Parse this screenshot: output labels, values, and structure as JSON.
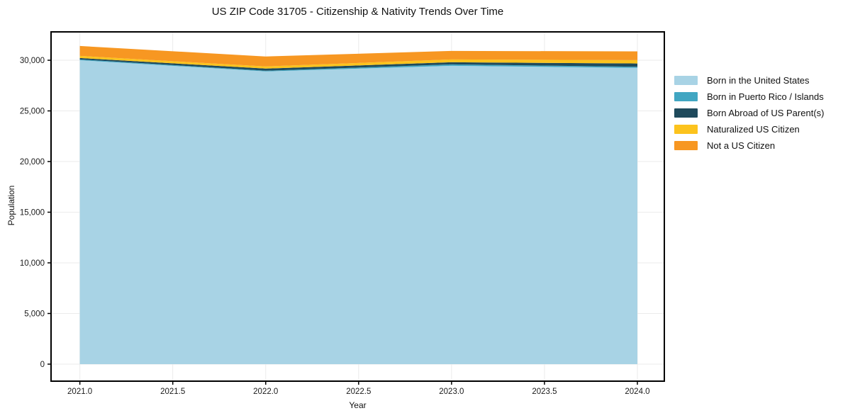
{
  "chart_data": {
    "type": "area",
    "stacked": true,
    "title": "US ZIP Code 31705 - Citizenship & Nativity Trends Over Time",
    "xlabel": "Year",
    "ylabel": "Population",
    "x": [
      2021,
      2022,
      2023,
      2024
    ],
    "series": [
      {
        "name": "Born in the United States",
        "color": "#a8d3e5",
        "values": [
          30000,
          28900,
          29450,
          29250
        ]
      },
      {
        "name": "Born in Puerto Rico / Islands",
        "color": "#41a6c2",
        "values": [
          80,
          70,
          140,
          100
        ]
      },
      {
        "name": "Born Abroad of US Parent(s)",
        "color": "#1f4a5c",
        "values": [
          140,
          210,
          210,
          330
        ]
      },
      {
        "name": "Naturalized US Citizen",
        "color": "#fcc31d",
        "values": [
          210,
          210,
          280,
          330
        ]
      },
      {
        "name": "Not a US Citizen",
        "color": "#f79722",
        "values": [
          980,
          980,
          840,
          870
        ]
      }
    ],
    "xticks": {
      "values": [
        2021.0,
        2021.5,
        2022.0,
        2022.5,
        2023.0,
        2023.5,
        2024.0
      ],
      "labels": [
        "2021.0",
        "2021.5",
        "2022.0",
        "2022.5",
        "2023.0",
        "2023.5",
        "2024.0"
      ]
    },
    "yticks": {
      "values": [
        0,
        5000,
        10000,
        15000,
        20000,
        25000,
        30000
      ],
      "labels": [
        "0",
        "5,000",
        "10,000",
        "15,000",
        "20,000",
        "25,000",
        "30,000"
      ]
    },
    "xlim": [
      2020.845,
      2024.145
    ],
    "ylim": [
      -1680,
      32800
    ],
    "grid": true,
    "legend_position": "outside-right-top",
    "grid_color": "#ebebeb",
    "spine_color": "#000000",
    "text_color": "#1a1a1a"
  }
}
